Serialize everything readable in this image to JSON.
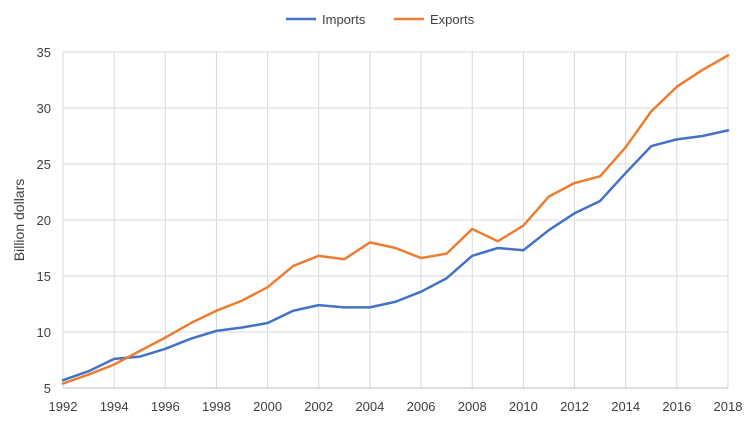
{
  "chart_data": {
    "type": "line",
    "title": "",
    "xlabel": "",
    "ylabel": "Billion dollars",
    "xlim": [
      1992,
      2018
    ],
    "ylim": [
      5,
      35
    ],
    "x_ticks": [
      "1992",
      "1994",
      "1996",
      "1998",
      "2000",
      "2002",
      "2004",
      "2006",
      "2008",
      "2010",
      "2012",
      "2014",
      "2016",
      "2018"
    ],
    "y_ticks": [
      "5",
      "10",
      "15",
      "20",
      "25",
      "30",
      "35"
    ],
    "grid": true,
    "legend_position": "top-center",
    "x": [
      1992,
      1993,
      1994,
      1995,
      1996,
      1997,
      1998,
      1999,
      2000,
      2001,
      2002,
      2003,
      2004,
      2005,
      2006,
      2007,
      2008,
      2009,
      2010,
      2011,
      2012,
      2013,
      2014,
      2015,
      2016,
      2017,
      2018
    ],
    "series": [
      {
        "name": "Imports",
        "color": "#4472c4",
        "values": [
          5.7,
          6.5,
          7.6,
          7.8,
          8.5,
          9.4,
          10.1,
          10.4,
          10.8,
          11.9,
          12.4,
          12.2,
          12.2,
          12.7,
          13.6,
          14.8,
          16.8,
          17.5,
          17.3,
          19.1,
          20.6,
          21.7,
          24.2,
          26.6,
          27.2,
          27.5,
          28.0
        ]
      },
      {
        "name": "Exports",
        "color": "#ed7d31",
        "values": [
          5.4,
          6.2,
          7.1,
          8.3,
          9.5,
          10.8,
          11.9,
          12.8,
          14.0,
          15.9,
          16.8,
          16.5,
          18.0,
          17.5,
          16.6,
          17.0,
          19.2,
          18.1,
          19.5,
          22.1,
          23.3,
          23.9,
          26.5,
          29.7,
          31.9,
          33.4,
          34.7
        ]
      }
    ]
  }
}
